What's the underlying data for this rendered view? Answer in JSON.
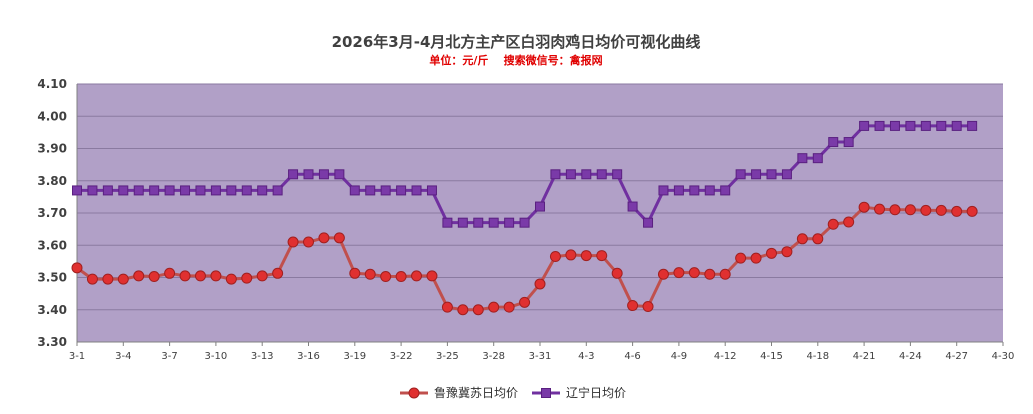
{
  "chart_data": {
    "type": "line",
    "title": "2026年3月-4月北方主产区白羽肉鸡日均价可视化曲线",
    "subtitle": "单位：元/斤    搜索微信号：禽报网",
    "x_ticks": [
      "3-1",
      "3-4",
      "3-7",
      "3-10",
      "3-13",
      "3-16",
      "3-19",
      "3-22",
      "3-25",
      "3-28",
      "3-31",
      "4-3",
      "4-6",
      "4-9",
      "4-12",
      "4-15",
      "4-18",
      "4-21",
      "4-24",
      "4-27",
      "4-30"
    ],
    "y_ticks": [
      "3.30",
      "3.40",
      "3.50",
      "3.60",
      "3.70",
      "3.80",
      "3.90",
      "4.00",
      "4.10"
    ],
    "ylim": [
      3.3,
      4.1
    ],
    "grid": true,
    "legend_position": "bottom",
    "plot_background": "#b1a0c7",
    "x": [
      "3-1",
      "3-2",
      "3-3",
      "3-4",
      "3-5",
      "3-6",
      "3-7",
      "3-8",
      "3-9",
      "3-10",
      "3-11",
      "3-12",
      "3-13",
      "3-14",
      "3-15",
      "3-16",
      "3-17",
      "3-18",
      "3-19",
      "3-20",
      "3-21",
      "3-22",
      "3-23",
      "3-24",
      "3-25",
      "3-26",
      "3-27",
      "3-28",
      "3-29",
      "3-30",
      "3-31",
      "4-1",
      "4-2",
      "4-3",
      "4-4",
      "4-5",
      "4-6",
      "4-7",
      "4-8",
      "4-9",
      "4-10",
      "4-11",
      "4-12",
      "4-13",
      "4-14",
      "4-15",
      "4-16",
      "4-17",
      "4-18",
      "4-19",
      "4-20",
      "4-21",
      "4-22",
      "4-23",
      "4-24",
      "4-25",
      "4-26",
      "4-27",
      "4-28"
    ],
    "series": [
      {
        "name": "鲁豫冀苏日均价",
        "color": "#c0504d",
        "marker": "circle",
        "values": [
          3.53,
          3.495,
          3.495,
          3.495,
          3.505,
          3.503,
          3.513,
          3.505,
          3.505,
          3.505,
          3.495,
          3.498,
          3.505,
          3.513,
          3.61,
          3.61,
          3.623,
          3.623,
          3.513,
          3.51,
          3.503,
          3.503,
          3.505,
          3.505,
          3.408,
          3.4,
          3.4,
          3.408,
          3.408,
          3.423,
          3.48,
          3.565,
          3.57,
          3.568,
          3.568,
          3.513,
          3.413,
          3.41,
          3.51,
          3.515,
          3.515,
          3.51,
          3.51,
          3.56,
          3.56,
          3.575,
          3.58,
          3.62,
          3.62,
          3.665,
          3.672,
          3.718,
          3.712,
          3.71,
          3.71,
          3.708,
          3.708,
          3.705,
          3.705
        ]
      },
      {
        "name": "辽宁日均价",
        "color": "#7030a0",
        "marker": "square",
        "values": [
          3.77,
          3.77,
          3.77,
          3.77,
          3.77,
          3.77,
          3.77,
          3.77,
          3.77,
          3.77,
          3.77,
          3.77,
          3.77,
          3.77,
          3.82,
          3.82,
          3.82,
          3.82,
          3.77,
          3.77,
          3.77,
          3.77,
          3.77,
          3.77,
          3.67,
          3.67,
          3.67,
          3.67,
          3.67,
          3.67,
          3.72,
          3.82,
          3.82,
          3.82,
          3.82,
          3.82,
          3.72,
          3.67,
          3.77,
          3.77,
          3.77,
          3.77,
          3.77,
          3.82,
          3.82,
          3.82,
          3.82,
          3.87,
          3.87,
          3.92,
          3.92,
          3.97,
          3.97,
          3.97,
          3.97,
          3.97,
          3.97,
          3.97,
          3.97
        ]
      }
    ]
  }
}
